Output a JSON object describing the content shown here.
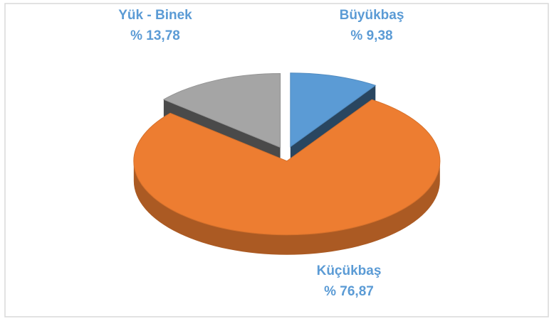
{
  "chart_data": {
    "type": "pie",
    "categories": [
      "Büyükbaş",
      "Küçükbaş",
      "Yük - Binek"
    ],
    "values": [
      9.38,
      76.87,
      13.78
    ],
    "value_labels": [
      "% 9,38",
      "% 76,87",
      "% 13,78"
    ],
    "colors": [
      "#5b9bd5",
      "#ed7d31",
      "#a5a5a5"
    ]
  }
}
